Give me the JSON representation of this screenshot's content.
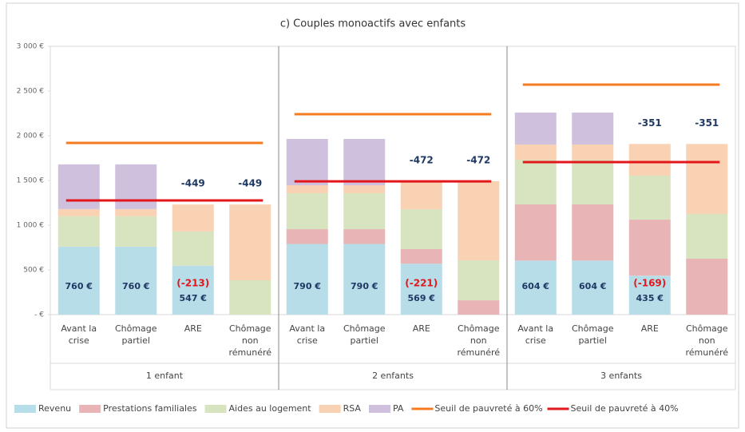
{
  "chart_data": {
    "type": "stacked_bar",
    "title": "c) Couples monoactifs avec enfants",
    "groups": [
      "1 enfant",
      "2 enfants",
      "3 enfants"
    ],
    "categories": [
      "Avant la crise",
      "Chômage partiel",
      "ARE",
      "Chômage non rémunéré",
      "Avant la crise",
      "Chômage partiel",
      "ARE",
      "Chômage non rémunéré",
      "Avant la crise",
      "Chômage partiel",
      "ARE",
      "Chômage non rémunéré"
    ],
    "series": [
      {
        "name": "Revenu",
        "color": "#b7dde9",
        "values": [
          760,
          760,
          547,
          0,
          790,
          790,
          569,
          0,
          604,
          604,
          435,
          0
        ],
        "value_labels": [
          "760 €",
          "760 €",
          "547 €",
          null,
          "790 €",
          "790 €",
          "569 €",
          null,
          "604 €",
          "604 €",
          "435 €",
          null
        ]
      },
      {
        "name": "Prestations familiales",
        "color": "#e8b4b6",
        "values": [
          0,
          0,
          0,
          0,
          165,
          165,
          163,
          160,
          628,
          628,
          627,
          625
        ]
      },
      {
        "name": "Aides au logement",
        "color": "#d7e4bf",
        "values": [
          340,
          340,
          383,
          384,
          402,
          402,
          447,
          447,
          500,
          500,
          492,
          500
        ]
      },
      {
        "name": "RSA",
        "color": "#f9d1b3",
        "values": [
          80,
          80,
          301,
          847,
          89,
          89,
          313,
          885,
          170,
          170,
          354,
          783
        ]
      },
      {
        "name": "PA",
        "color": "#cfc1dd",
        "values": [
          500,
          500,
          0,
          0,
          518,
          518,
          0,
          0,
          357,
          357,
          0,
          0
        ]
      }
    ],
    "lines": [
      {
        "name": "Seuil de pauvreté à 60%",
        "color": "#f47b20",
        "values": [
          1920,
          2241,
          2571
        ]
      },
      {
        "name": "Seuil de pauvreté à 40%",
        "color": "#e3161b",
        "values": [
          1277,
          1490,
          1705
        ]
      }
    ],
    "revenue_change_labels": [
      null,
      null,
      "(-213)",
      null,
      null,
      null,
      "(-221)",
      null,
      null,
      null,
      "(-169)",
      null
    ],
    "total_change_labels": [
      null,
      null,
      "-449",
      "-449",
      null,
      null,
      "-472",
      "-472",
      null,
      null,
      "-351",
      "-351"
    ],
    "ylim": [
      0,
      3000
    ],
    "yticks": [
      {
        "value": 0,
        "label": "- €"
      },
      {
        "value": 500,
        "label": "500 €"
      },
      {
        "value": 1000,
        "label": "1 000 €"
      },
      {
        "value": 1500,
        "label": "1 500 €"
      },
      {
        "value": 2000,
        "label": "2 000 €"
      },
      {
        "value": 2500,
        "label": "2 500 €"
      },
      {
        "value": 3000,
        "label": "3 000 €"
      }
    ],
    "grid": false
  }
}
